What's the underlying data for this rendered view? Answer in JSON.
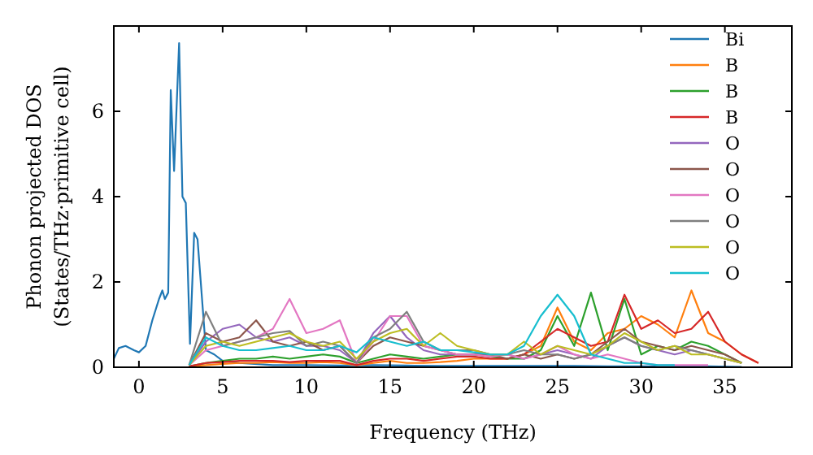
{
  "chart_data": {
    "type": "line",
    "xlabel": "Frequency (THz)",
    "ylabel": "Phonon projected DOS\n(States/THz·primitive cell)",
    "xlim": [
      -1.5,
      39
    ],
    "ylim": [
      0,
      8
    ],
    "xticks": [
      0,
      5,
      10,
      15,
      20,
      25,
      30,
      35
    ],
    "yticks": [
      0,
      2,
      4,
      6
    ],
    "legend": "top right",
    "grid": false,
    "x": [
      3,
      4,
      5,
      6,
      7,
      8,
      9,
      10,
      11,
      12,
      13,
      14,
      15,
      16,
      17,
      18,
      19,
      20,
      21,
      22,
      23,
      24,
      25,
      26,
      27,
      28,
      29,
      30,
      31,
      32,
      33,
      34,
      35,
      36,
      37
    ],
    "series": [
      {
        "name": "Bi",
        "color": "#1f77b4",
        "x": [
          -1.5,
          -1.2,
          -0.8,
          -0.3,
          0,
          0.4,
          0.8,
          1.2,
          1.4,
          1.55,
          1.75,
          1.9,
          2.1,
          2.4,
          2.6,
          2.8,
          3.05,
          3.3,
          3.5,
          4,
          4.5,
          5,
          6,
          8,
          10,
          12,
          14,
          16,
          18,
          20,
          22,
          24,
          26,
          28,
          30,
          32,
          34,
          36
        ],
        "values": [
          0.2,
          0.45,
          0.5,
          0.4,
          0.35,
          0.5,
          1.1,
          1.6,
          1.8,
          1.6,
          1.75,
          6.5,
          4.6,
          7.6,
          4.0,
          3.85,
          0.55,
          3.15,
          3.0,
          0.4,
          0.3,
          0.15,
          0.1,
          0.05,
          0.05,
          0.04,
          0.05,
          0.04,
          0.03,
          0.03,
          0.03,
          0.03,
          0.03,
          0.02,
          0.02,
          0.02,
          0.02,
          0.01
        ]
      },
      {
        "name": "B",
        "color": "#ff7f0e",
        "values": [
          0.02,
          0.05,
          0.08,
          0.1,
          0.1,
          0.12,
          0.1,
          0.1,
          0.12,
          0.1,
          0.05,
          0.1,
          0.15,
          0.1,
          0.1,
          0.12,
          0.15,
          0.2,
          0.2,
          0.2,
          0.3,
          0.5,
          1.4,
          0.6,
          0.4,
          0.8,
          0.9,
          1.2,
          1.0,
          0.7,
          1.8,
          0.8,
          0.6,
          0.3,
          0.1
        ]
      },
      {
        "name": "B",
        "color": "#2ca02c",
        "values": [
          0.02,
          0.1,
          0.15,
          0.2,
          0.2,
          0.25,
          0.2,
          0.25,
          0.3,
          0.25,
          0.1,
          0.2,
          0.3,
          0.25,
          0.2,
          0.25,
          0.3,
          0.3,
          0.25,
          0.2,
          0.2,
          0.4,
          1.2,
          0.5,
          1.75,
          0.4,
          1.6,
          0.3,
          0.5,
          0.4,
          0.6,
          0.5,
          0.3,
          0.1,
          null
        ]
      },
      {
        "name": "B",
        "color": "#d62728",
        "values": [
          0.02,
          0.1,
          0.12,
          0.15,
          0.15,
          0.15,
          0.12,
          0.15,
          0.15,
          0.15,
          0.05,
          0.15,
          0.2,
          0.2,
          0.15,
          0.2,
          0.25,
          0.25,
          0.2,
          0.2,
          0.3,
          0.6,
          0.9,
          0.7,
          0.5,
          0.6,
          1.7,
          0.9,
          1.1,
          0.8,
          0.9,
          1.3,
          0.6,
          0.3,
          0.1
        ]
      },
      {
        "name": "O",
        "color": "#9467bd",
        "values": [
          0.05,
          0.6,
          0.9,
          1.0,
          0.7,
          0.6,
          0.7,
          0.5,
          0.5,
          0.4,
          0.1,
          0.8,
          1.2,
          0.7,
          0.4,
          0.3,
          0.3,
          0.3,
          0.3,
          0.3,
          0.2,
          0.3,
          0.4,
          0.3,
          0.2,
          0.5,
          0.7,
          0.5,
          0.4,
          0.3,
          0.4,
          0.3,
          0.2,
          0.1,
          null
        ]
      },
      {
        "name": "O",
        "color": "#8c564b",
        "values": [
          0.05,
          0.8,
          0.6,
          0.7,
          1.1,
          0.6,
          0.5,
          0.6,
          0.4,
          0.5,
          0.1,
          0.5,
          0.7,
          0.6,
          0.5,
          0.4,
          0.3,
          0.3,
          0.3,
          0.2,
          0.3,
          0.2,
          0.3,
          0.2,
          0.3,
          0.6,
          0.9,
          0.6,
          0.5,
          0.4,
          0.5,
          0.4,
          0.3,
          0.1,
          null
        ]
      },
      {
        "name": "O",
        "color": "#e377c2",
        "values": [
          0.05,
          0.4,
          0.5,
          0.6,
          0.7,
          0.9,
          1.6,
          0.8,
          0.9,
          1.1,
          0.1,
          0.6,
          1.2,
          1.2,
          0.5,
          0.4,
          0.3,
          0.3,
          0.25,
          0.3,
          0.2,
          0.3,
          0.5,
          0.3,
          0.2,
          0.3,
          0.2,
          0.1,
          0.05,
          0.05,
          0.05,
          0.05,
          null,
          null,
          null
        ]
      },
      {
        "name": "O",
        "color": "#7f7f7f",
        "values": [
          0.05,
          1.3,
          0.5,
          0.6,
          0.7,
          0.8,
          0.85,
          0.5,
          0.6,
          0.5,
          0.1,
          0.7,
          0.9,
          1.3,
          0.6,
          0.4,
          0.4,
          0.4,
          0.3,
          0.3,
          0.4,
          0.3,
          0.3,
          0.2,
          0.3,
          0.5,
          0.7,
          0.5,
          0.4,
          0.5,
          0.4,
          0.3,
          0.2,
          0.1,
          null
        ]
      },
      {
        "name": "O",
        "color": "#bcbd22",
        "values": [
          0.05,
          0.5,
          0.6,
          0.5,
          0.6,
          0.7,
          0.8,
          0.6,
          0.5,
          0.6,
          0.2,
          0.6,
          0.8,
          0.9,
          0.5,
          0.8,
          0.5,
          0.4,
          0.3,
          0.3,
          0.6,
          0.3,
          0.5,
          0.4,
          0.3,
          0.5,
          0.8,
          0.6,
          0.4,
          0.5,
          0.3,
          0.3,
          0.2,
          0.1,
          null
        ]
      },
      {
        "name": "O",
        "color": "#17becf",
        "values": [
          0.05,
          0.7,
          0.5,
          0.4,
          0.4,
          0.45,
          0.5,
          0.4,
          0.4,
          0.5,
          0.35,
          0.7,
          0.6,
          0.5,
          0.6,
          0.4,
          0.4,
          0.35,
          0.3,
          0.3,
          0.5,
          1.2,
          1.7,
          1.2,
          0.3,
          0.2,
          0.1,
          0.1,
          0.05,
          0.05,
          null,
          null,
          null,
          null,
          null
        ]
      }
    ]
  }
}
